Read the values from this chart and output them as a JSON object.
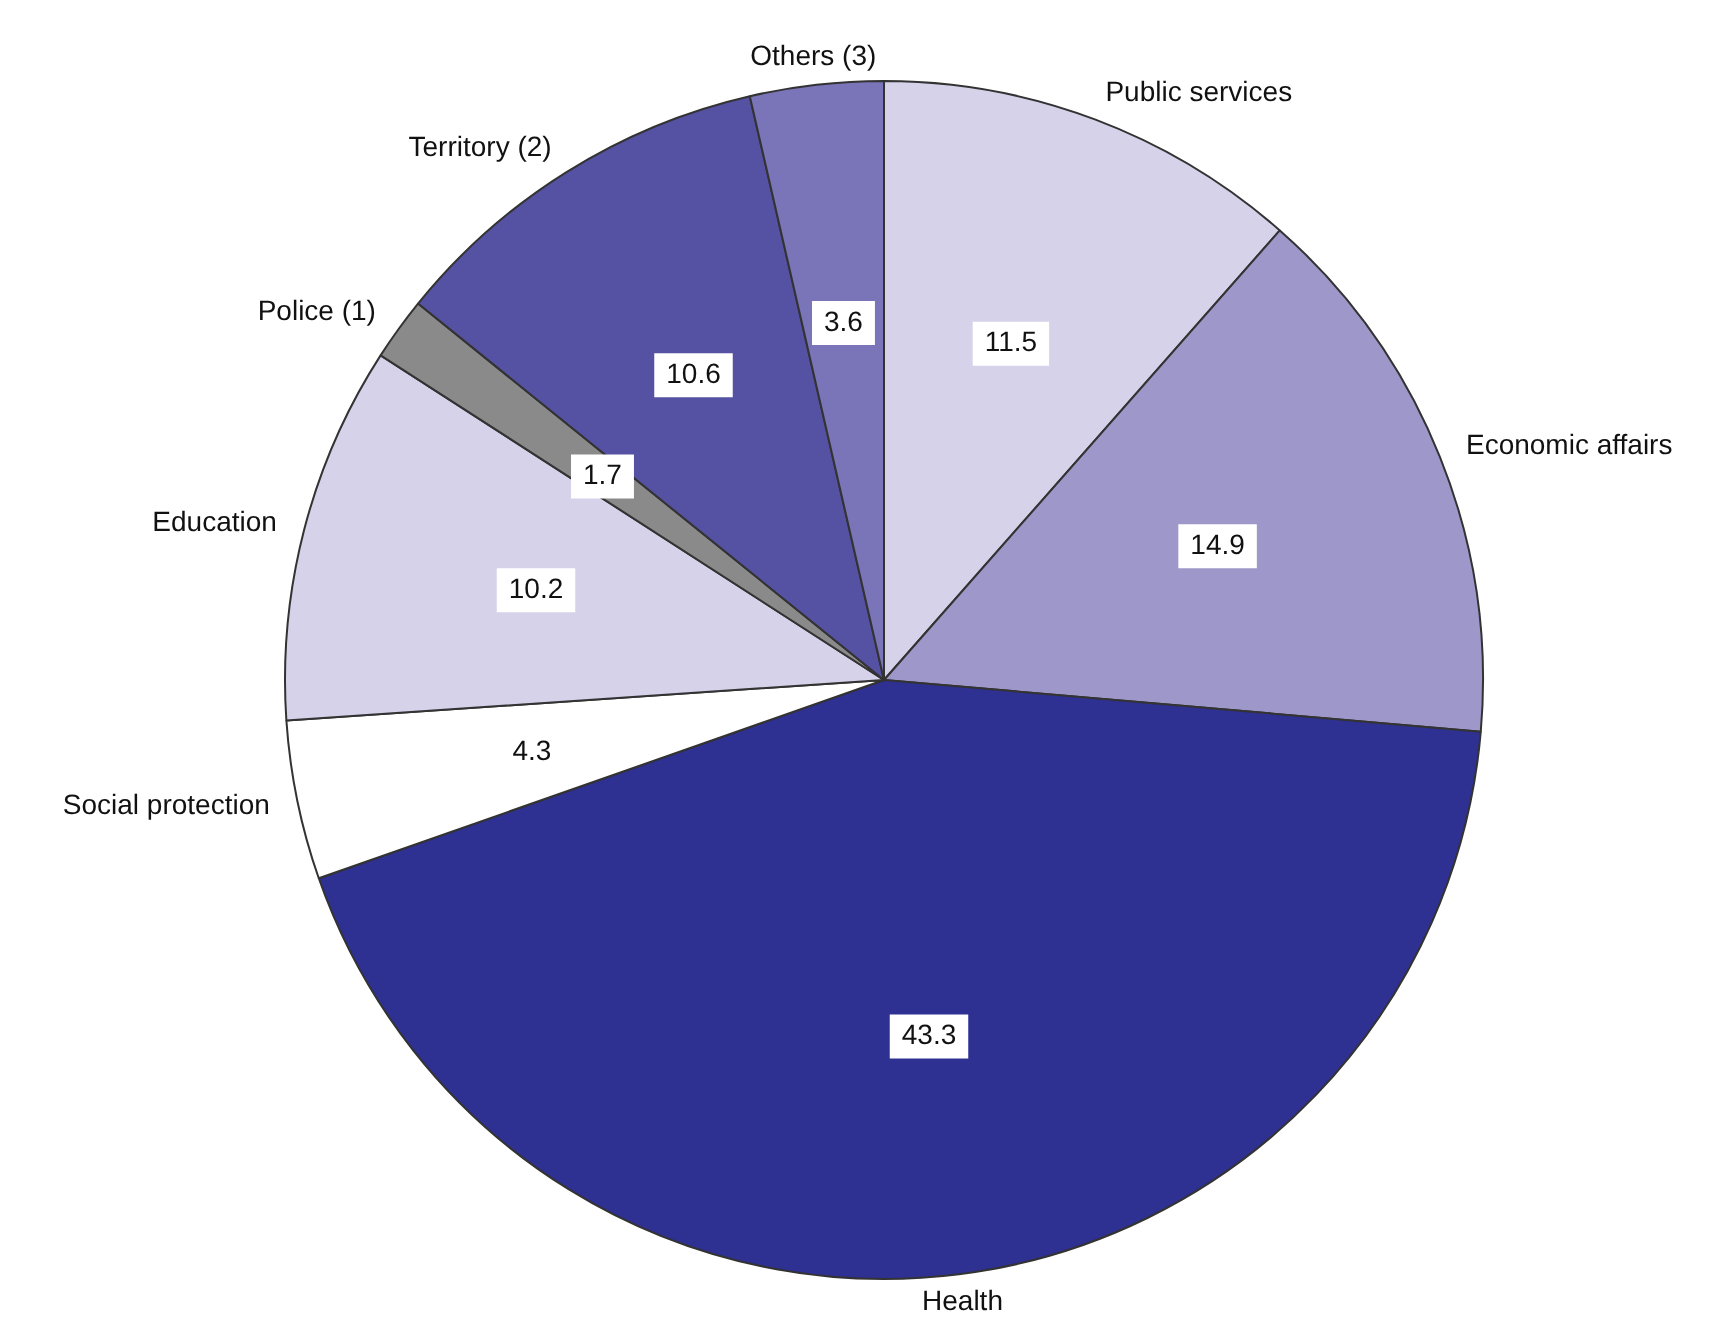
{
  "chart_data": {
    "type": "pie",
    "categories": [
      "Public services",
      "Economic affairs",
      "Health",
      "Social protection",
      "Education",
      "Police (1)",
      "Territory (2)",
      "Others (3)"
    ],
    "values": [
      11.5,
      14.9,
      43.3,
      4.3,
      10.2,
      1.7,
      10.6,
      3.6
    ],
    "colors": [
      "#d6d2ea",
      "#9e98ca",
      "#2e3092",
      "#ffffff",
      "#d6d2ea",
      "#8a8a8a",
      "#5551a3",
      "#7a74b8"
    ],
    "data_labels": true,
    "legend": false
  }
}
